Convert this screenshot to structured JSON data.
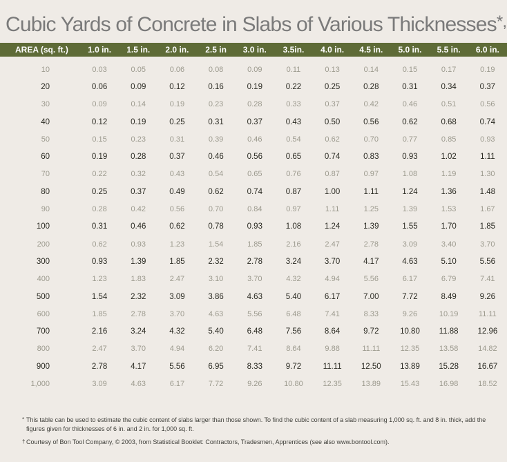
{
  "title": "Cubic Yards of Concrete in Slabs of Various Thicknesses",
  "title_marks": "*,†",
  "table": {
    "header": [
      "AREA (sq. ft.)",
      "1.0 in.",
      "1.5 in.",
      "2.0 in.",
      "2.5 in",
      "3.0 in.",
      "3.5in.",
      "4.0 in.",
      "4.5 in.",
      "5.0 in.",
      "5.5 in.",
      "6.0 in."
    ],
    "rows": [
      [
        "10",
        "0.03",
        "0.05",
        "0.06",
        "0.08",
        "0.09",
        "0.11",
        "0.13",
        "0.14",
        "0.15",
        "0.17",
        "0.19"
      ],
      [
        "20",
        "0.06",
        "0.09",
        "0.12",
        "0.16",
        "0.19",
        "0.22",
        "0.25",
        "0.28",
        "0.31",
        "0.34",
        "0.37"
      ],
      [
        "30",
        "0.09",
        "0.14",
        "0.19",
        "0.23",
        "0.28",
        "0.33",
        "0.37",
        "0.42",
        "0.46",
        "0.51",
        "0.56"
      ],
      [
        "40",
        "0.12",
        "0.19",
        "0.25",
        "0.31",
        "0.37",
        "0.43",
        "0.50",
        "0.56",
        "0.62",
        "0.68",
        "0.74"
      ],
      [
        "50",
        "0.15",
        "0.23",
        "0.31",
        "0.39",
        "0.46",
        "0.54",
        "0.62",
        "0.70",
        "0.77",
        "0.85",
        "0.93"
      ],
      [
        "60",
        "0.19",
        "0.28",
        "0.37",
        "0.46",
        "0.56",
        "0.65",
        "0.74",
        "0.83",
        "0.93",
        "1.02",
        "1.11"
      ],
      [
        "70",
        "0.22",
        "0.32",
        "0.43",
        "0.54",
        "0.65",
        "0.76",
        "0.87",
        "0.97",
        "1.08",
        "1.19",
        "1.30"
      ],
      [
        "80",
        "0.25",
        "0.37",
        "0.49",
        "0.62",
        "0.74",
        "0.87",
        "1.00",
        "1.11",
        "1.24",
        "1.36",
        "1.48"
      ],
      [
        "90",
        "0.28",
        "0.42",
        "0.56",
        "0.70",
        "0.84",
        "0.97",
        "1.11",
        "1.25",
        "1.39",
        "1.53",
        "1.67"
      ],
      [
        "100",
        "0.31",
        "0.46",
        "0.62",
        "0.78",
        "0.93",
        "1.08",
        "1.24",
        "1.39",
        "1.55",
        "1.70",
        "1.85"
      ],
      [
        "200",
        "0.62",
        "0.93",
        "1.23",
        "1.54",
        "1.85",
        "2.16",
        "2.47",
        "2.78",
        "3.09",
        "3.40",
        "3.70"
      ],
      [
        "300",
        "0.93",
        "1.39",
        "1.85",
        "2.32",
        "2.78",
        "3.24",
        "3.70",
        "4.17",
        "4.63",
        "5.10",
        "5.56"
      ],
      [
        "400",
        "1.23",
        "1.83",
        "2.47",
        "3.10",
        "3.70",
        "4.32",
        "4.94",
        "5.56",
        "6.17",
        "6.79",
        "7.41"
      ],
      [
        "500",
        "1.54",
        "2.32",
        "3.09",
        "3.86",
        "4.63",
        "5.40",
        "6.17",
        "7.00",
        "7.72",
        "8.49",
        "9.26"
      ],
      [
        "600",
        "1.85",
        "2.78",
        "3.70",
        "4.63",
        "5.56",
        "6.48",
        "7.41",
        "8.33",
        "9.26",
        "10.19",
        "11.11"
      ],
      [
        "700",
        "2.16",
        "3.24",
        "4.32",
        "5.40",
        "6.48",
        "7.56",
        "8.64",
        "9.72",
        "10.80",
        "11.88",
        "12.96"
      ],
      [
        "800",
        "2.47",
        "3.70",
        "4.94",
        "6.20",
        "7.41",
        "8.64",
        "9.88",
        "11.11",
        "12.35",
        "13.58",
        "14.82"
      ],
      [
        "900",
        "2.78",
        "4.17",
        "5.56",
        "6.95",
        "8.33",
        "9.72",
        "11.11",
        "12.50",
        "13.89",
        "15.28",
        "16.67"
      ],
      [
        "1,000",
        "3.09",
        "4.63",
        "6.17",
        "7.72",
        "9.26",
        "10.80",
        "12.35",
        "13.89",
        "15.43",
        "16.98",
        "18.52"
      ]
    ]
  },
  "footnotes": {
    "note_mark": "*",
    "note": "This table can be used to estimate the cubic content of slabs larger than those shown. To find the cubic content of a slab measuring 1,000 sq. ft. and 8 in. thick, add the figures given for thicknesses of 6 in. and 2 in. for 1,000 sq. ft.",
    "credit_mark": "†",
    "credit": "Courtesy of Bon Tool Company, © 2003, from Statistical Booklet: Contractors, Tradesmen, Apprentices (see also www.bontool.com)."
  },
  "colors": {
    "header_bg": "#5e6b37",
    "header_text": "#ffffff",
    "dark_row_text": "#2a2a22",
    "light_row_text": "#9c9a8e",
    "title_text": "#7a7a7a",
    "background": "#efebe6"
  }
}
